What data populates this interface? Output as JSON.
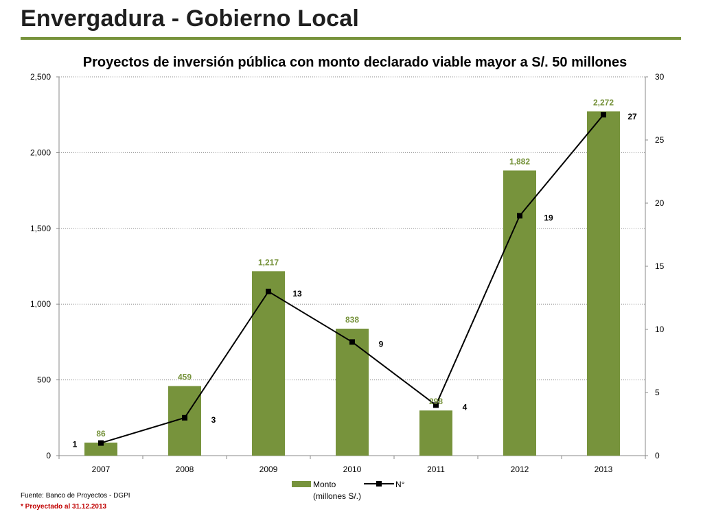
{
  "slide": {
    "title": "Envergadura - Gobierno Local",
    "source": "Fuente: Banco de Proyectos - DGPI",
    "note": "* Proyectado al 31.12.2013"
  },
  "colors": {
    "bar": "#77933c",
    "line": "#000000",
    "accent_rule": "#77933c",
    "note": "#c00000"
  },
  "chart_data": {
    "type": "bar",
    "title": "Proyectos de inversión pública con monto declarado viable mayor a S/. 50 millones",
    "categories": [
      "2007",
      "2008",
      "2009",
      "2010",
      "2011",
      "2012",
      "2013"
    ],
    "series": [
      {
        "name": "Monto (millones S/.)",
        "type": "bar",
        "axis": "left",
        "values": [
          86,
          459,
          1217,
          838,
          298,
          1882,
          2272
        ],
        "labels": [
          "86",
          "459",
          "1,217",
          "838",
          "298",
          "1,882",
          "2,272"
        ]
      },
      {
        "name": "N°",
        "type": "line",
        "axis": "right",
        "values": [
          1,
          3,
          13,
          9,
          4,
          19,
          27
        ],
        "labels": [
          "1",
          "3",
          "13",
          "9",
          "4",
          "19",
          "27"
        ]
      }
    ],
    "y_left": {
      "ylim": [
        0,
        2500
      ],
      "ticks": [
        0,
        500,
        1000,
        1500,
        2000,
        2500
      ],
      "tick_labels": [
        "0",
        "500",
        "1,000",
        "1,500",
        "2,000",
        "2,500"
      ]
    },
    "y_right": {
      "ylim": [
        0,
        30
      ],
      "ticks": [
        0,
        5,
        10,
        15,
        20,
        25,
        30
      ],
      "tick_labels": [
        "0",
        "5",
        "10",
        "15",
        "20",
        "25",
        "30"
      ]
    },
    "legend": {
      "placement": "bottom",
      "bar_label_line1": "Monto",
      "bar_label_line2": "(millones S/.)",
      "line_label": "N°"
    },
    "grid": true
  }
}
